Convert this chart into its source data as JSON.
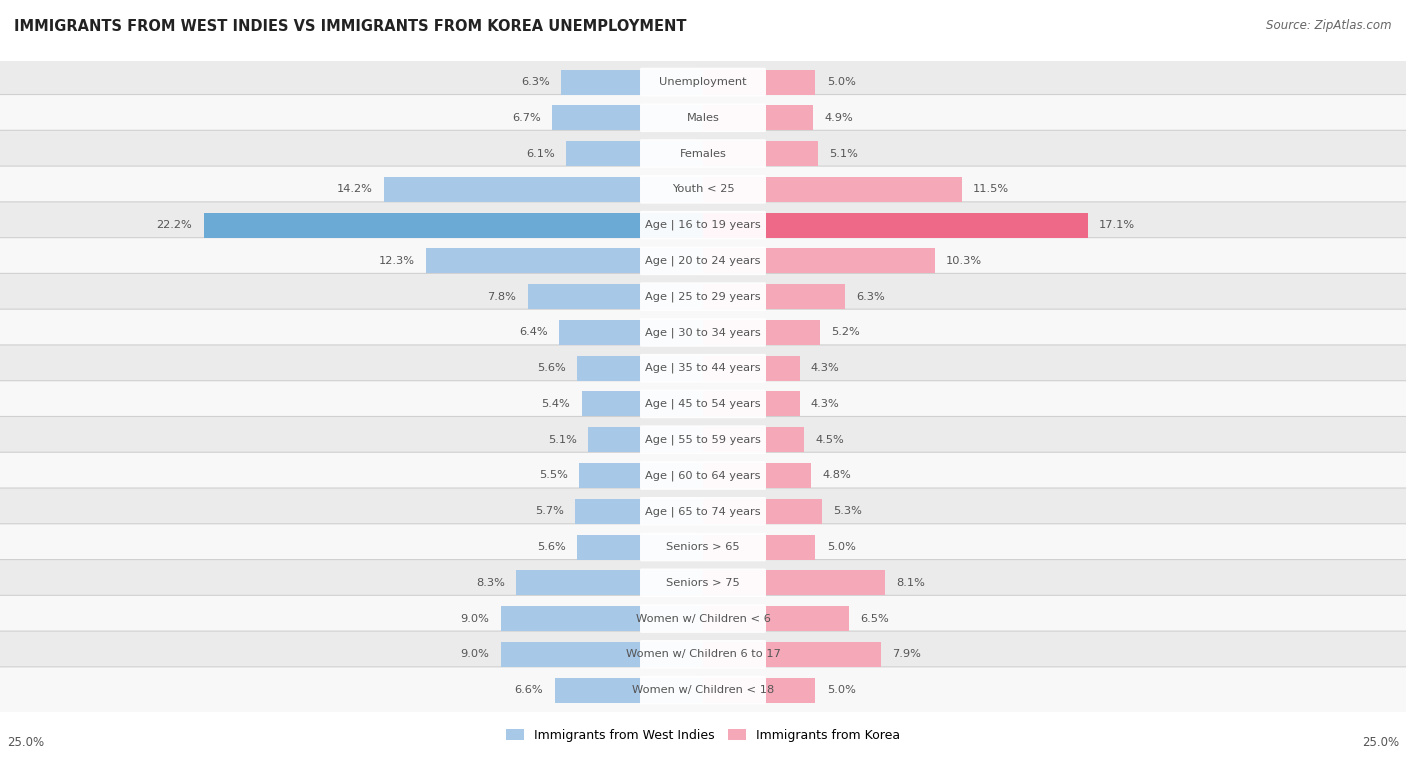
{
  "title": "IMMIGRANTS FROM WEST INDIES VS IMMIGRANTS FROM KOREA UNEMPLOYMENT",
  "source": "Source: ZipAtlas.com",
  "categories": [
    "Unemployment",
    "Males",
    "Females",
    "Youth < 25",
    "Age | 16 to 19 years",
    "Age | 20 to 24 years",
    "Age | 25 to 29 years",
    "Age | 30 to 34 years",
    "Age | 35 to 44 years",
    "Age | 45 to 54 years",
    "Age | 55 to 59 years",
    "Age | 60 to 64 years",
    "Age | 65 to 74 years",
    "Seniors > 65",
    "Seniors > 75",
    "Women w/ Children < 6",
    "Women w/ Children 6 to 17",
    "Women w/ Children < 18"
  ],
  "west_indies": [
    6.3,
    6.7,
    6.1,
    14.2,
    22.2,
    12.3,
    7.8,
    6.4,
    5.6,
    5.4,
    5.1,
    5.5,
    5.7,
    5.6,
    8.3,
    9.0,
    9.0,
    6.6
  ],
  "korea": [
    5.0,
    4.9,
    5.1,
    11.5,
    17.1,
    10.3,
    6.3,
    5.2,
    4.3,
    4.3,
    4.5,
    4.8,
    5.3,
    5.0,
    8.1,
    6.5,
    7.9,
    5.0
  ],
  "blue_color": "#a8c8e8",
  "pink_color": "#f4a8b8",
  "blue_highlight": "#6aaad4",
  "pink_highlight": "#ee6888",
  "row_bg_even": "#ebebeb",
  "row_bg_odd": "#f8f8f8",
  "max_val": 25.0,
  "legend_blue": "Immigrants from West Indies",
  "legend_pink": "Immigrants from Korea",
  "label_color": "#555555",
  "title_color": "#222222",
  "source_color": "#666666"
}
